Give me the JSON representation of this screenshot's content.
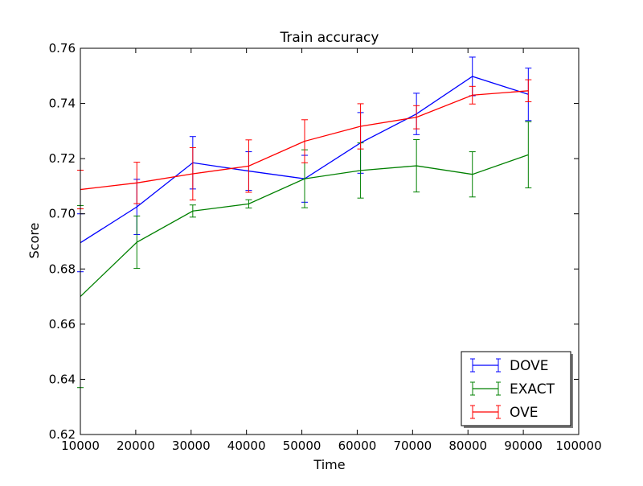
{
  "chart_data": {
    "type": "line",
    "title": "Train accuracy",
    "xlabel": "Time",
    "ylabel": "Score",
    "xlim": [
      10000,
      100000
    ],
    "ylim": [
      0.62,
      0.76
    ],
    "xticks": [
      10000,
      20000,
      30000,
      40000,
      50000,
      60000,
      70000,
      80000,
      90000,
      100000
    ],
    "xtick_labels": [
      "10000",
      "20000",
      "30000",
      "40000",
      "50000",
      "60000",
      "70000",
      "80000",
      "90000",
      "100000"
    ],
    "yticks": [
      0.62,
      0.64,
      0.66,
      0.68,
      0.7,
      0.72,
      0.74,
      0.76
    ],
    "ytick_labels": [
      "0.62",
      "0.64",
      "0.66",
      "0.68",
      "0.70",
      "0.72",
      "0.74",
      "0.76"
    ],
    "grid": false,
    "legend_position": "bottom-right",
    "series": [
      {
        "name": "DOVE",
        "color": "#0000ff",
        "x": [
          10000,
          20200,
          30300,
          40400,
          50500,
          60600,
          70700,
          80800,
          90900
        ],
        "y": [
          0.6895,
          0.7025,
          0.7185,
          0.7155,
          0.7127,
          0.7257,
          0.7362,
          0.7498,
          0.7433
        ],
        "err": [
          0.0105,
          0.01,
          0.0095,
          0.007,
          0.0085,
          0.011,
          0.0075,
          0.007,
          0.0095
        ]
      },
      {
        "name": "EXACT",
        "color": "#008000",
        "x": [
          10000,
          20200,
          30300,
          40400,
          50500,
          60600,
          70700,
          80800,
          90900
        ],
        "y": [
          0.67,
          0.6897,
          0.701,
          0.7036,
          0.7127,
          0.7157,
          0.7174,
          0.7143,
          0.7214
        ],
        "err": [
          0.033,
          0.0095,
          0.0022,
          0.0015,
          0.0105,
          0.01,
          0.0095,
          0.0082,
          0.012
        ]
      },
      {
        "name": "OVE",
        "color": "#ff0000",
        "x": [
          10000,
          20200,
          30300,
          40400,
          50500,
          60600,
          70700,
          80800,
          90900
        ],
        "y": [
          0.7088,
          0.7112,
          0.7145,
          0.7173,
          0.7263,
          0.7317,
          0.735,
          0.743,
          0.7446
        ],
        "err": [
          0.007,
          0.0075,
          0.0095,
          0.0095,
          0.0078,
          0.0082,
          0.0042,
          0.0032,
          0.004
        ]
      }
    ]
  }
}
